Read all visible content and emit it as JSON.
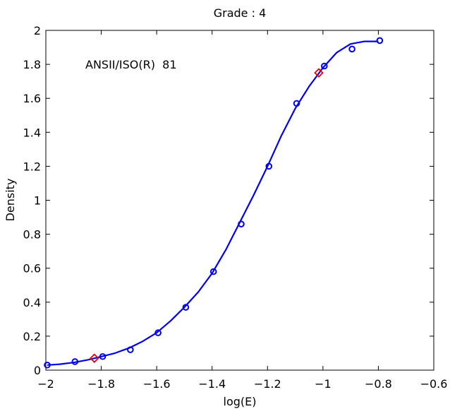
{
  "chart_data": {
    "type": "scatter",
    "title": "Grade : 4",
    "xlabel": "log(E)",
    "ylabel": "Density",
    "annotation": "ANSII/ISO(R)  81",
    "xlim": [
      -2,
      -0.6
    ],
    "ylim": [
      0,
      2
    ],
    "xticks": [
      -2,
      -1.8,
      -1.6,
      -1.4,
      -1.2,
      -1,
      -0.8,
      -0.6
    ],
    "xtick_labels": [
      "−2",
      "−1.8",
      "−1.6",
      "−1.4",
      "−1.2",
      "−1",
      "−0.8",
      "−0.6"
    ],
    "yticks": [
      0,
      0.2,
      0.4,
      0.6,
      0.8,
      1,
      1.2,
      1.4,
      1.6,
      1.8,
      2
    ],
    "ytick_labels": [
      "0",
      "0.2",
      "0.4",
      "0.6",
      "0.8",
      "1",
      "1.2",
      "1.4",
      "1.6",
      "1.8",
      "2"
    ],
    "grid": false,
    "colors": {
      "measured": "#0000ee",
      "fit": "#0000ee",
      "reference": "#ee0000"
    },
    "series": [
      {
        "kind": "scatter",
        "marker": "circle",
        "x": [
          -1.995,
          -1.895,
          -1.795,
          -1.695,
          -1.595,
          -1.495,
          -1.395,
          -1.295,
          -1.195,
          -1.095,
          -0.995,
          -0.895,
          -0.795
        ],
        "y": [
          0.03,
          0.05,
          0.08,
          0.12,
          0.22,
          0.37,
          0.58,
          0.86,
          1.2,
          1.57,
          1.79,
          1.89,
          1.94
        ]
      },
      {
        "kind": "line",
        "x": [
          -1.995,
          -1.95,
          -1.9,
          -1.85,
          -1.8,
          -1.75,
          -1.7,
          -1.65,
          -1.6,
          -1.55,
          -1.5,
          -1.45,
          -1.4,
          -1.35,
          -1.3,
          -1.25,
          -1.2,
          -1.15,
          -1.1,
          -1.05,
          -1.0,
          -0.95,
          -0.9,
          -0.85,
          -0.8
        ],
        "y": [
          0.03,
          0.035,
          0.045,
          0.06,
          0.08,
          0.1,
          0.13,
          0.17,
          0.22,
          0.29,
          0.37,
          0.46,
          0.57,
          0.71,
          0.87,
          1.03,
          1.2,
          1.38,
          1.54,
          1.67,
          1.78,
          1.87,
          1.92,
          1.935,
          1.935
        ]
      },
      {
        "kind": "scatter",
        "marker": "diamond",
        "x": [
          -1.825,
          -1.015
        ],
        "y": [
          0.07,
          1.75
        ]
      }
    ]
  }
}
